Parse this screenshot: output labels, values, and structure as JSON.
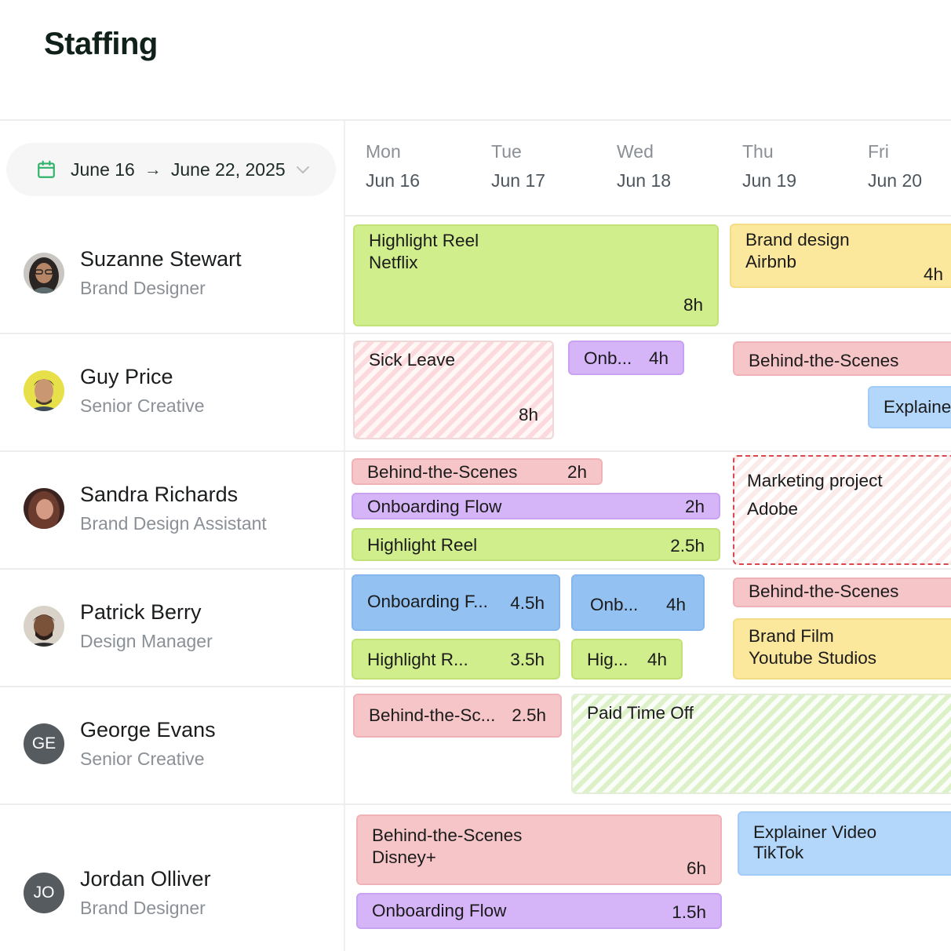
{
  "title": "Staffing",
  "date_range": {
    "start": "June 16",
    "arrow": "→",
    "end": "June 22, 2025"
  },
  "days": [
    {
      "name": "Mon",
      "date": "Jun 16"
    },
    {
      "name": "Tue",
      "date": "Jun 17"
    },
    {
      "name": "Wed",
      "date": "Jun 18"
    },
    {
      "name": "Thu",
      "date": "Jun 19"
    },
    {
      "name": "Fri",
      "date": "Jun 20"
    }
  ],
  "people": [
    {
      "name": "Suzanne Stewart",
      "role": "Brand Designer"
    },
    {
      "name": "Guy Price",
      "role": "Senior Creative"
    },
    {
      "name": "Sandra Richards",
      "role": "Brand Design Assistant"
    },
    {
      "name": "Patrick Berry",
      "role": "Design Manager"
    },
    {
      "name": "George Evans",
      "role": "Senior Creative",
      "initials": "GE"
    },
    {
      "name": "Jordan Olliver",
      "role": "Brand Designer",
      "initials": "JO"
    }
  ],
  "assignments": {
    "suzanne": [
      {
        "title": "Highlight Reel",
        "client": "Netflix",
        "hours": "8h"
      },
      {
        "title": "Brand design",
        "client": "Airbnb",
        "hours": "4h"
      }
    ],
    "guy": [
      {
        "title": "Sick Leave",
        "hours": "8h"
      },
      {
        "title": "Onb...",
        "hours": "4h"
      },
      {
        "title": "Behind-the-Scenes"
      },
      {
        "title": "Explaine"
      }
    ],
    "sandra": [
      {
        "title": "Behind-the-Scenes",
        "hours": "2h"
      },
      {
        "title": "Onboarding Flow",
        "hours": "2h"
      },
      {
        "title": "Highlight Reel",
        "hours": "2.5h"
      },
      {
        "title": "Marketing project",
        "client": "Adobe"
      }
    ],
    "patrick": [
      {
        "title": "Onboarding F...",
        "hours": "4.5h"
      },
      {
        "title": "Onb...",
        "hours": "4h"
      },
      {
        "title": "Behind-the-Scenes"
      },
      {
        "title": "Highlight R...",
        "hours": "3.5h"
      },
      {
        "title": "Hig...",
        "hours": "4h"
      },
      {
        "title": "Brand Film",
        "client": "Youtube Studios"
      }
    ],
    "george": [
      {
        "title": "Behind-the-Sc...",
        "hours": "2.5h"
      },
      {
        "title": "Paid Time Off"
      }
    ],
    "jordan": [
      {
        "title": "Behind-the-Scenes",
        "client": "Disney+",
        "hours": "6h"
      },
      {
        "title": "Explainer Video",
        "client": "TikTok"
      },
      {
        "title": "Onboarding Flow",
        "hours": "1.5h"
      }
    ]
  },
  "colors": {
    "green": "#d0ee8b",
    "yellow": "#fbe89c",
    "pink": "#f6c5c8",
    "purple": "#d5b4f8",
    "blue": "#93c1f2",
    "light_blue": "#b3d7fb",
    "calendar_icon": "#2fb36b",
    "dashed_border": "#d9484e"
  },
  "icons": {
    "date_range": "calendar-icon",
    "dropdown": "chevron-down-icon"
  }
}
